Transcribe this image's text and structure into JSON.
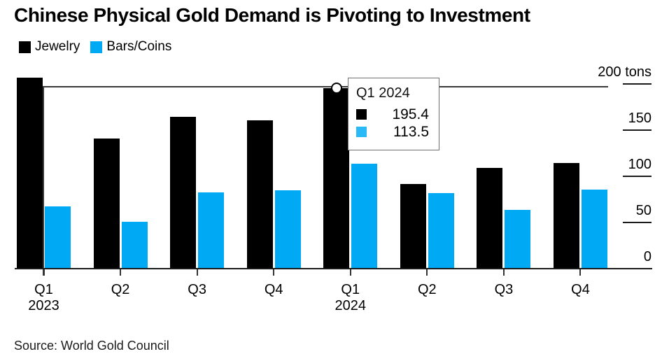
{
  "title": "Chinese Physical Gold Demand is Pivoting to Investment",
  "legend": {
    "items": [
      {
        "label": "Jewelry",
        "color": "#000000"
      },
      {
        "label": "Bars/Coins",
        "color": "#00A9F4"
      }
    ]
  },
  "y_axis": {
    "ticks": [
      {
        "label": "200 tons",
        "value": 200
      },
      {
        "label": "150",
        "value": 150
      },
      {
        "label": "100",
        "value": 100
      },
      {
        "label": "50",
        "value": 50
      },
      {
        "label": "0",
        "value": 0
      }
    ]
  },
  "x_axis": {
    "labels": [
      "Q1",
      "Q2",
      "Q3",
      "Q4",
      "Q1",
      "Q2",
      "Q3",
      "Q4"
    ],
    "years": [
      {
        "index": 0,
        "label": "2023"
      },
      {
        "index": 4,
        "label": "2024"
      }
    ]
  },
  "tooltip": {
    "title": "Q1 2024",
    "rows": [
      {
        "series": "Jewelry",
        "color": "#000000",
        "value": "195.4"
      },
      {
        "series": "Bars/Coins",
        "color": "#29B9F7",
        "value": "113.5"
      }
    ]
  },
  "source": {
    "text": "Source: World Gold Council"
  },
  "colors": {
    "jewelry": "#000000",
    "bars_coins": "#00A9F4",
    "axis": "#1a1a1a",
    "crosshair": "#3a3a3a"
  },
  "chart_data": {
    "type": "bar",
    "title": "Chinese Physical Gold Demand is Pivoting to Investment",
    "categories": [
      "Q1 2023",
      "Q2 2023",
      "Q3 2023",
      "Q4 2023",
      "Q1 2024",
      "Q2 2024",
      "Q3 2024",
      "Q4 2024"
    ],
    "series": [
      {
        "name": "Jewelry",
        "color": "#000000",
        "values": [
          206.5,
          141.0,
          164.5,
          161.0,
          195.4,
          92.0,
          109.5,
          114.5
        ]
      },
      {
        "name": "Bars/Coins",
        "color": "#00A9F4",
        "values": [
          67.5,
          50.5,
          82.5,
          85.0,
          113.5,
          82.0,
          63.5,
          86.0
        ]
      }
    ],
    "ylabel": "tons",
    "ylim": [
      0,
      200
    ],
    "y_ticks": [
      0,
      50,
      100,
      150,
      200
    ],
    "grid": false,
    "legend_position": "top-left",
    "highlight": {
      "category": "Q1 2024",
      "Jewelry": 195.4,
      "Bars/Coins": 113.5
    }
  }
}
